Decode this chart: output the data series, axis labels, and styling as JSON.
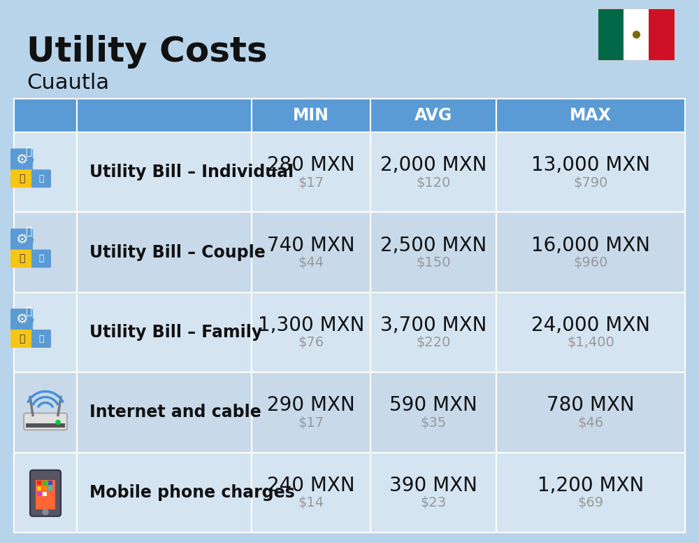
{
  "title": "Utility Costs",
  "subtitle": "Cuautla",
  "background_color": "#b8d4ea",
  "header_bg_color": "#5b9bd5",
  "header_text_color": "#ffffff",
  "row_bg_even": "#c8daea",
  "row_bg_odd": "#d4e4f0",
  "col_headers": [
    "MIN",
    "AVG",
    "MAX"
  ],
  "rows": [
    {
      "label": "Utility Bill – Individual",
      "icon": "utility",
      "min_mxn": "280 MXN",
      "min_usd": "$17",
      "avg_mxn": "2,000 MXN",
      "avg_usd": "$120",
      "max_mxn": "13,000 MXN",
      "max_usd": "$790"
    },
    {
      "label": "Utility Bill – Couple",
      "icon": "utility",
      "min_mxn": "740 MXN",
      "min_usd": "$44",
      "avg_mxn": "2,500 MXN",
      "avg_usd": "$150",
      "max_mxn": "16,000 MXN",
      "max_usd": "$960"
    },
    {
      "label": "Utility Bill – Family",
      "icon": "utility",
      "min_mxn": "1,300 MXN",
      "min_usd": "$76",
      "avg_mxn": "3,700 MXN",
      "avg_usd": "$220",
      "max_mxn": "24,000 MXN",
      "max_usd": "$1,400"
    },
    {
      "label": "Internet and cable",
      "icon": "internet",
      "min_mxn": "290 MXN",
      "min_usd": "$17",
      "avg_mxn": "590 MXN",
      "avg_usd": "$35",
      "max_mxn": "780 MXN",
      "max_usd": "$46"
    },
    {
      "label": "Mobile phone charges",
      "icon": "mobile",
      "min_mxn": "240 MXN",
      "min_usd": "$14",
      "avg_mxn": "390 MXN",
      "avg_usd": "$23",
      "max_mxn": "1,200 MXN",
      "max_usd": "$69"
    }
  ],
  "title_fontsize": 36,
  "subtitle_fontsize": 22,
  "header_fontsize": 17,
  "label_fontsize": 17,
  "value_fontsize": 20,
  "usd_fontsize": 14,
  "usd_color": "#999999",
  "title_color": "#111111",
  "subtitle_color": "#111111",
  "value_color": "#111111",
  "label_color": "#111111",
  "flag_green": "#006847",
  "flag_white": "#ffffff",
  "flag_red": "#CE1126"
}
